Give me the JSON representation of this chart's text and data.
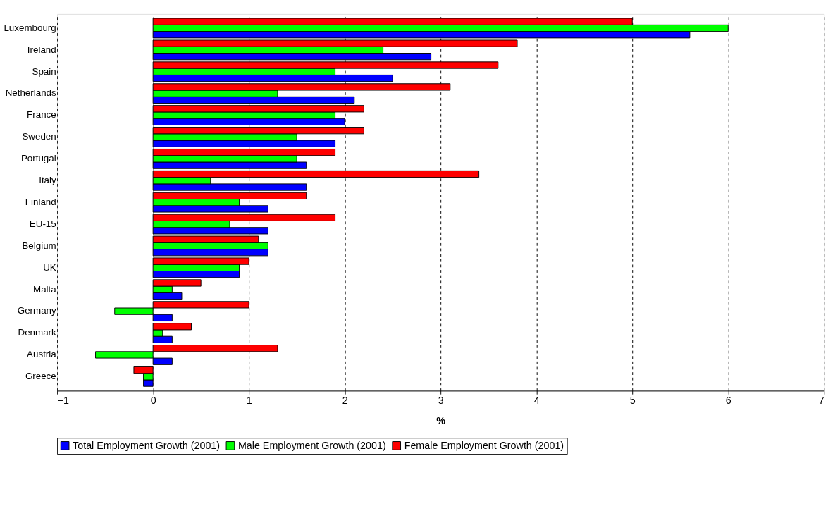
{
  "chart_data": {
    "type": "bar",
    "orientation": "horizontal",
    "xlabel": "%",
    "categories": [
      "Luxembourg",
      "Ireland",
      "Spain",
      "Netherlands",
      "France",
      "Sweden",
      "Portugal",
      "Italy",
      "Finland",
      "EU-15",
      "Belgium",
      "UK",
      "Malta",
      "Germany",
      "Denmark",
      "Austria",
      "Greece"
    ],
    "series": [
      {
        "name": "Total Employment Growth (2001)",
        "color": "#0000ff",
        "values": [
          5.6,
          2.9,
          2.5,
          2.1,
          2.0,
          1.9,
          1.6,
          1.6,
          1.2,
          1.2,
          1.2,
          0.9,
          0.3,
          0.2,
          0.2,
          0.2,
          -0.1
        ]
      },
      {
        "name": "Male Employment Growth (2001)",
        "color": "#00ff00",
        "values": [
          6.0,
          2.4,
          1.9,
          1.3,
          1.9,
          1.5,
          1.5,
          0.6,
          0.9,
          0.8,
          1.2,
          0.9,
          0.2,
          -0.4,
          0.1,
          -0.6,
          -0.1
        ]
      },
      {
        "name": "Female Employment Growth (2001)",
        "color": "#ff0000",
        "values": [
          5.0,
          3.8,
          3.6,
          3.1,
          2.2,
          2.2,
          1.9,
          3.4,
          1.6,
          1.9,
          1.1,
          1.0,
          0.5,
          1.0,
          0.4,
          1.3,
          -0.2
        ]
      }
    ],
    "xlim": [
      -1,
      7
    ],
    "xticks": [
      -1,
      0,
      1,
      2,
      3,
      4,
      5,
      6,
      7
    ],
    "grid": "x",
    "legend": "bottom"
  }
}
